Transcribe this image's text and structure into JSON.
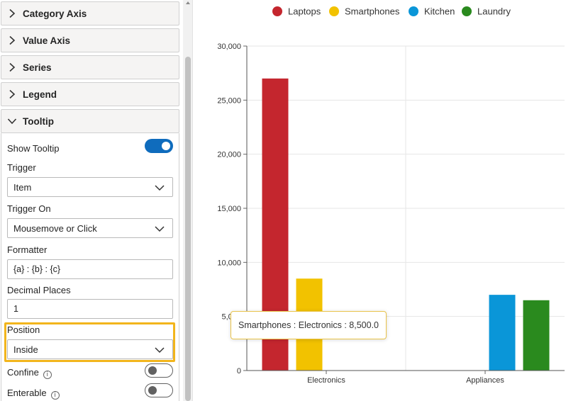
{
  "panel": {
    "sections": [
      {
        "label": "Category Axis",
        "expanded": false
      },
      {
        "label": "Value Axis",
        "expanded": false
      },
      {
        "label": "Series",
        "expanded": false
      },
      {
        "label": "Legend",
        "expanded": false
      },
      {
        "label": "Tooltip",
        "expanded": true
      }
    ],
    "tooltip": {
      "show_tooltip_label": "Show Tooltip",
      "show_tooltip_on": true,
      "trigger_label": "Trigger",
      "trigger_value": "Item",
      "trigger_on_label": "Trigger On",
      "trigger_on_value": "Mousemove or Click",
      "formatter_label": "Formatter",
      "formatter_value": "{a} : {b} : {c}",
      "decimal_places_label": "Decimal Places",
      "decimal_places_value": "1",
      "position_label": "Position",
      "position_value": "Inside",
      "confine_label": "Confine",
      "confine_on": false,
      "enterable_label": "Enterable",
      "enterable_on": false,
      "info_icon": "i"
    }
  },
  "colors": {
    "laptops": "#c4262e",
    "smartphones": "#f2c200",
    "kitchen": "#0a96d8",
    "laundry": "#2a8a1e",
    "highlight": "#f2b51c",
    "toggle_on": "#0f6cbd"
  },
  "chart_data": {
    "type": "bar",
    "categories": [
      "Electronics",
      "Appliances"
    ],
    "series": [
      {
        "name": "Laptops",
        "values": [
          27000,
          null
        ],
        "color": "#c4262e"
      },
      {
        "name": "Smartphones",
        "values": [
          8500,
          null
        ],
        "color": "#f2c200"
      },
      {
        "name": "Kitchen",
        "values": [
          null,
          7000
        ],
        "color": "#0a96d8"
      },
      {
        "name": "Laundry",
        "values": [
          null,
          6500
        ],
        "color": "#2a8a1e"
      }
    ],
    "ylim": [
      0,
      30000
    ],
    "yticks": [
      "0",
      "5,000",
      "10,000",
      "15,000",
      "20,000",
      "25,000",
      "30,000"
    ],
    "grid": true,
    "legend_position": "top-center"
  },
  "chart_tooltip": {
    "text": "Smartphones : Electronics : 8,500.0"
  }
}
